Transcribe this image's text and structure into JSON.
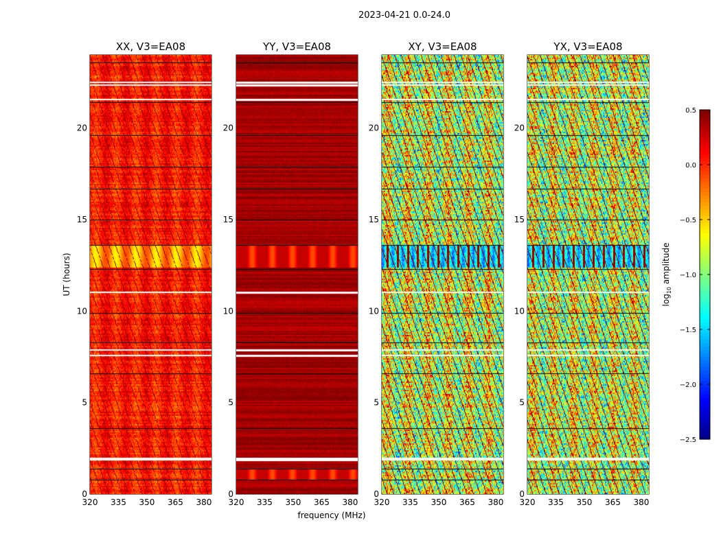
{
  "chart_data": {
    "type": "heatmap",
    "suptitle": "2023-04-21 0.0-24.0",
    "xlabel": "frequency (MHz)",
    "ylabel": "UT (hours)",
    "xlim": [
      320,
      384
    ],
    "ylim": [
      0,
      24
    ],
    "xticks": [
      "320",
      "335",
      "350",
      "365",
      "380"
    ],
    "xtick_values": [
      320,
      335,
      350,
      365,
      380
    ],
    "yticks": [
      "0",
      "5",
      "10",
      "15",
      "20"
    ],
    "ytick_values": [
      0,
      5,
      10,
      15,
      20
    ],
    "panels": [
      {
        "title": "XX, V3=EA08",
        "typical_log10_amplitude": 0.05,
        "show_ylabel_text": true
      },
      {
        "title": "YY, V3=EA08",
        "typical_log10_amplitude": 0.4,
        "show_ylabel_text": false
      },
      {
        "title": "XY, V3=EA08",
        "typical_log10_amplitude": -0.8,
        "show_ylabel_text": false
      },
      {
        "title": "YX, V3=EA08",
        "typical_log10_amplitude": -0.8,
        "show_ylabel_text": false
      }
    ],
    "flagged_hours": [
      22.55,
      22.4,
      21.6,
      11.05,
      7.9,
      7.6,
      2.0,
      1.9
    ],
    "scan_boundaries_hours": [
      23.6,
      21.4,
      19.6,
      17.9,
      16.7,
      15.0,
      13.6,
      12.3,
      9.9,
      8.3,
      6.6,
      3.6,
      1.4,
      0.8
    ],
    "colorbar": {
      "label": "log10 amplitude",
      "label_main": "log",
      "label_sub": "10",
      "label_rest": " amplitude",
      "range": [
        -2.5,
        0.5
      ],
      "ticks": [
        "0.5",
        "0.0",
        "−0.5",
        "−1.0",
        "−1.5",
        "−2.0",
        "−2.5"
      ],
      "tick_values": [
        0.5,
        0.0,
        -0.5,
        -1.0,
        -1.5,
        -2.0,
        -2.5
      ],
      "colormap": "jet"
    }
  }
}
